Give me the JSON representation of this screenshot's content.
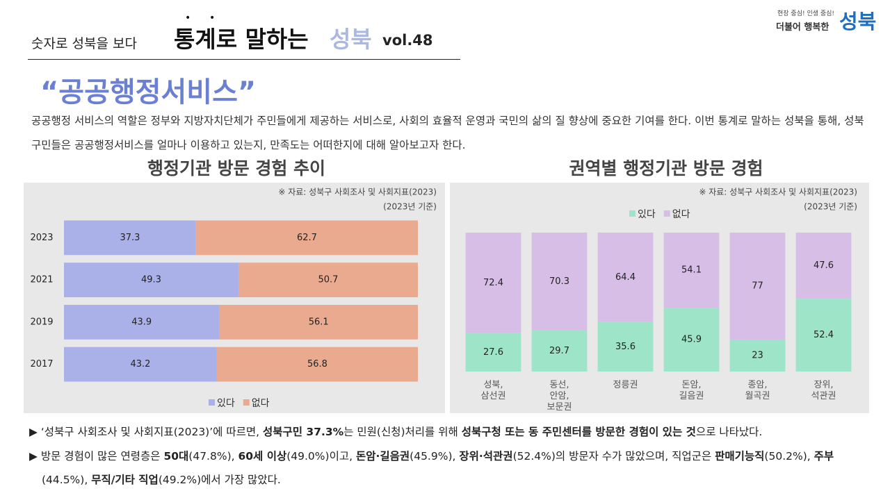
{
  "header": {
    "series_label": "숫자로 성북을 보다",
    "title_main": "통계로 말하는",
    "title_accent": "성북",
    "volume": "vol.48",
    "logo_slogan": "현장 중심! 인생 중심!",
    "logo_prefix": "더불어 행복한",
    "logo_name": "성북"
  },
  "topic": "“공공행정서비스”",
  "intro": "공공행정 서비스의 역할은 정부와 지방자치단체가 주민들에게 제공하는 서비스로, 사회의 효율적 운영과 국민의 삶의 질 향상에 중요한 기여를 한다. 이번 통계로 말하는 성북을 통해, 성북구민들은 공공행정서비스를 얼마나 이용하고 있는지, 만족도는 어떠한지에 대해 알아보고자 한다.",
  "chart_data": [
    {
      "type": "bar",
      "orientation": "horizontal",
      "stacked": true,
      "title": "행정기관 방문 경험 추이",
      "source": "※ 자료: 성북구 사회조사 및 사회지표(2023)",
      "basis": "(2023년 기준)",
      "categories": [
        "2023",
        "2021",
        "2019",
        "2017"
      ],
      "xlim": [
        0,
        100
      ],
      "legend": "bottom",
      "series": [
        {
          "name": "있다",
          "color": "#aab1e9",
          "values": [
            37.3,
            49.3,
            43.9,
            43.2
          ]
        },
        {
          "name": "없다",
          "color": "#eaaa90",
          "values": [
            62.7,
            50.7,
            56.1,
            56.8
          ]
        }
      ]
    },
    {
      "type": "bar",
      "orientation": "vertical",
      "stacked": true,
      "title": "권역별 행정기관 방문 경험",
      "source": "※ 자료: 성북구 사회조사 및 사회지표(2023)",
      "basis": "(2023년 기준)",
      "categories": [
        "성북,\n삼선권",
        "동선,\n안암,\n보문권",
        "정릉권",
        "돈암,\n길음권",
        "종암,\n월곡권",
        "장위,\n석관권"
      ],
      "ylim": [
        0,
        100
      ],
      "legend": "top",
      "series": [
        {
          "name": "있다",
          "color": "#9ee4c9",
          "values": [
            27.6,
            29.7,
            35.6,
            45.9,
            23,
            52.4
          ]
        },
        {
          "name": "없다",
          "color": "#d6bee7",
          "values": [
            72.4,
            70.3,
            64.4,
            54.1,
            77,
            47.6
          ]
        }
      ]
    }
  ],
  "notes": [
    [
      {
        "text": "‘성북구 사회조사 및 사회지표(2023)’에 따르면, ",
        "bold": false
      },
      {
        "text": "성북구민 37.3%",
        "bold": true
      },
      {
        "text": "는 민원(신청)처리를 위해 ",
        "bold": false
      },
      {
        "text": "성북구청 또는 동 주민센터를 방문한 경험이 있는 것",
        "bold": true
      },
      {
        "text": "으로 나타났다.",
        "bold": false
      }
    ],
    [
      {
        "text": "방문 경험이 많은 연령층은 ",
        "bold": false
      },
      {
        "text": "50대",
        "bold": true
      },
      {
        "text": "(47.8%), ",
        "bold": false
      },
      {
        "text": "60세 이상",
        "bold": true
      },
      {
        "text": "(49.0%)이고, ",
        "bold": false
      },
      {
        "text": "돈암·길음권",
        "bold": true
      },
      {
        "text": "(45.9%), ",
        "bold": false
      },
      {
        "text": "장위·석관권",
        "bold": true
      },
      {
        "text": "(52.4%)의 방문자 수가 많았으며, 직업군은 ",
        "bold": false
      },
      {
        "text": "판매기능직",
        "bold": true
      },
      {
        "text": "(50.2%), ",
        "bold": false
      },
      {
        "text": "주부",
        "bold": true
      },
      {
        "text": "(44.5%), ",
        "bold": false
      },
      {
        "text": "무직/기타 직업",
        "bold": true
      },
      {
        "text": "(49.2%)에서 가장 많았다.",
        "bold": false
      }
    ]
  ]
}
